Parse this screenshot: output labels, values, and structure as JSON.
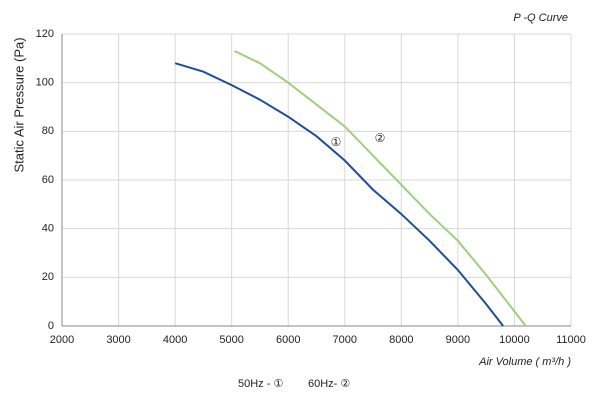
{
  "chart_data": {
    "type": "line",
    "title": "P -Q Curve",
    "x_label": "Air Volume ( m³/h )",
    "y_label": "Static Air Pressure  (Pa)",
    "xlim": [
      2000,
      11000
    ],
    "xticks": [
      2000,
      3000,
      4000,
      5000,
      6000,
      7000,
      8000,
      9000,
      10000,
      11000
    ],
    "ylim": [
      0,
      120
    ],
    "yticks": [
      0,
      20,
      40,
      60,
      80,
      100,
      120
    ],
    "grid": true,
    "annotations": [
      "①",
      "②"
    ],
    "series": [
      {
        "name": "50Hz - ①",
        "color": "#1f4e96",
        "x": [
          4000,
          4500,
          5000,
          5500,
          6000,
          6500,
          7000,
          7500,
          8000,
          8500,
          9000,
          9500,
          9800
        ],
        "values": [
          108,
          104.5,
          99,
          93,
          86,
          78,
          68,
          56,
          46,
          35,
          23,
          9,
          0
        ]
      },
      {
        "name": "60Hz- ②",
        "color": "#9fcf7e",
        "x": [
          5050,
          5500,
          6000,
          6500,
          7000,
          7500,
          8000,
          8500,
          9000,
          9500,
          10000,
          10200
        ],
        "values": [
          113,
          108,
          100,
          91,
          82,
          70,
          58,
          46,
          35,
          21,
          6,
          0
        ]
      }
    ]
  }
}
